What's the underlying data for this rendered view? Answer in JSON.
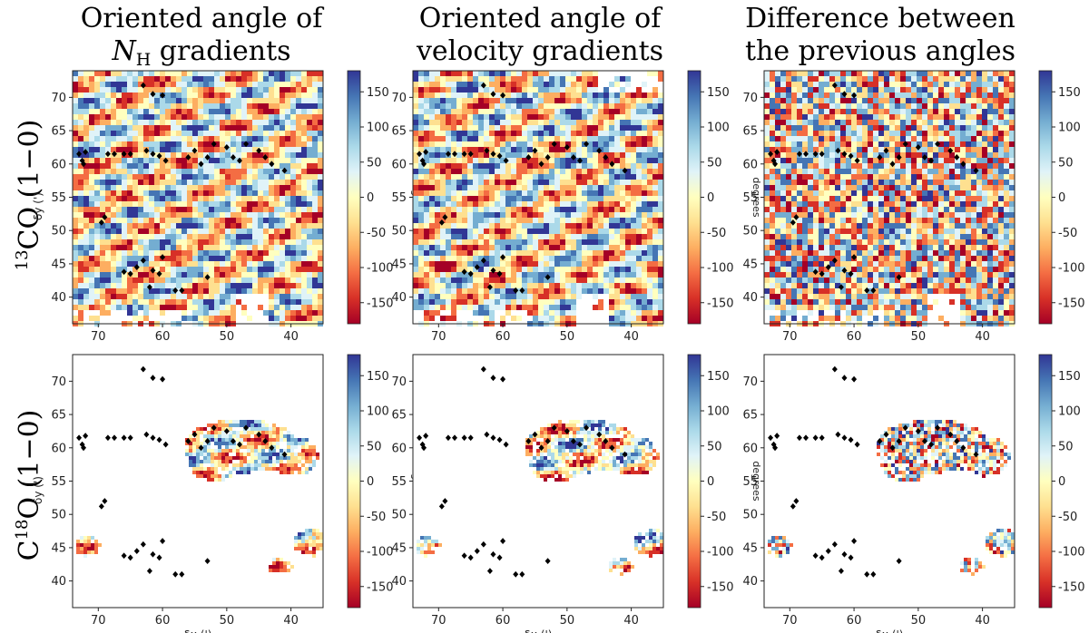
{
  "figure": {
    "col_titles": [
      [
        "Oriented angle of",
        "N_H gradients"
      ],
      [
        "Oriented angle of",
        "velocity gradients"
      ],
      [
        "Difference between",
        "the previous angles"
      ]
    ],
    "row_labels": [
      "13CO (1−0)",
      "C18O (1−0)"
    ],
    "row_label_parts": [
      {
        "sup": "13",
        "main": "CO (1−0)"
      },
      {
        "pre": "C",
        "sup": "18",
        "main": "O (1−0)"
      }
    ],
    "colorbar_label": "degrees",
    "colorbar_ticks": [
      150,
      100,
      50,
      0,
      -50,
      -100,
      -150
    ],
    "colormap": [
      "#313695",
      "#4575b4",
      "#74add1",
      "#abd9e9",
      "#e0f3f8",
      "#ffffbf",
      "#fee090",
      "#fdae61",
      "#f46d43",
      "#d73027",
      "#a50026"
    ]
  },
  "chart_data": [
    {
      "type": "heatmap",
      "title": "Oriented angle of N_H gradients",
      "row": "13CO (1-0)",
      "xlabel": "",
      "ylabel": "δy (')",
      "xlim": [
        74,
        35
      ],
      "ylim": [
        36,
        74
      ],
      "xticks": [
        70,
        60,
        50,
        40
      ],
      "yticks": [
        40,
        45,
        50,
        55,
        60,
        65,
        70
      ],
      "clim": [
        -180,
        180
      ],
      "colorbar_label": "degrees",
      "coverage": "full"
    },
    {
      "type": "heatmap",
      "title": "Oriented angle of velocity gradients",
      "row": "13CO (1-0)",
      "xlabel": "",
      "ylabel": "",
      "xlim": [
        74,
        35
      ],
      "ylim": [
        36,
        74
      ],
      "xticks": [
        70,
        60,
        50,
        40
      ],
      "yticks": [
        40,
        45,
        50,
        55,
        60,
        65,
        70
      ],
      "clim": [
        -180,
        180
      ],
      "colorbar_label": "degrees",
      "coverage": "full"
    },
    {
      "type": "heatmap",
      "title": "Difference between the previous angles",
      "row": "13CO (1-0)",
      "xlabel": "",
      "ylabel": "",
      "xlim": [
        74,
        35
      ],
      "ylim": [
        36,
        74
      ],
      "xticks": [
        70,
        60,
        50,
        40
      ],
      "yticks": [
        40,
        45,
        50,
        55,
        60,
        65,
        70
      ],
      "clim": [
        -180,
        180
      ],
      "colorbar_label": "degrees",
      "coverage": "full"
    },
    {
      "type": "heatmap",
      "title": "Oriented angle of N_H gradients",
      "row": "C18O (1-0)",
      "xlabel": "δx (')",
      "ylabel": "δy (')",
      "xlim": [
        74,
        35
      ],
      "ylim": [
        36,
        74
      ],
      "xticks": [
        70,
        60,
        50,
        40
      ],
      "yticks": [
        40,
        45,
        50,
        55,
        60,
        65,
        70
      ],
      "clim": [
        -180,
        180
      ],
      "colorbar_label": "degrees",
      "coverage": "partial"
    },
    {
      "type": "heatmap",
      "title": "Oriented angle of velocity gradients",
      "row": "C18O (1-0)",
      "xlabel": "δx (')",
      "ylabel": "",
      "xlim": [
        74,
        35
      ],
      "ylim": [
        36,
        74
      ],
      "xticks": [
        70,
        60,
        50,
        40
      ],
      "yticks": [
        40,
        45,
        50,
        55,
        60,
        65,
        70
      ],
      "clim": [
        -180,
        180
      ],
      "colorbar_label": "degrees",
      "coverage": "partial"
    },
    {
      "type": "heatmap",
      "title": "Difference between the previous angles",
      "row": "C18O (1-0)",
      "xlabel": "δx (')",
      "ylabel": "",
      "xlim": [
        74,
        35
      ],
      "ylim": [
        36,
        74
      ],
      "xticks": [
        70,
        60,
        50,
        40
      ],
      "yticks": [
        40,
        45,
        50,
        55,
        60,
        65,
        70
      ],
      "clim": [
        -180,
        180
      ],
      "colorbar_label": "degrees",
      "coverage": "partial"
    }
  ],
  "markers": {
    "shape": "diamond",
    "color": "#000000",
    "points": [
      [
        73,
        61.5
      ],
      [
        72.5,
        60.5
      ],
      [
        72,
        61.8
      ],
      [
        72.3,
        60
      ],
      [
        68.5,
        61.5
      ],
      [
        67.5,
        61.5
      ],
      [
        66,
        61.5
      ],
      [
        65,
        61.5
      ],
      [
        63,
        71.8
      ],
      [
        61.5,
        70.5
      ],
      [
        60,
        70.3
      ],
      [
        62.5,
        62
      ],
      [
        61.5,
        61.5
      ],
      [
        60.5,
        61.2
      ],
      [
        59.5,
        60.5
      ],
      [
        56,
        61
      ],
      [
        55,
        62
      ],
      [
        54,
        60
      ],
      [
        53,
        61
      ],
      [
        52,
        63
      ],
      [
        50,
        62.5
      ],
      [
        49,
        61
      ],
      [
        48,
        60.5
      ],
      [
        47,
        63
      ],
      [
        45,
        62
      ],
      [
        44,
        61
      ],
      [
        43,
        60
      ],
      [
        41,
        59
      ],
      [
        64,
        44.5
      ],
      [
        63,
        45.5
      ],
      [
        65,
        43.5
      ],
      [
        66,
        43.8
      ],
      [
        62,
        41.5
      ],
      [
        61.5,
        44
      ],
      [
        60,
        46
      ],
      [
        60.5,
        43.5
      ],
      [
        58,
        41
      ],
      [
        57,
        41
      ],
      [
        53,
        43
      ],
      [
        69,
        52
      ],
      [
        69.5,
        51.2
      ]
    ]
  }
}
